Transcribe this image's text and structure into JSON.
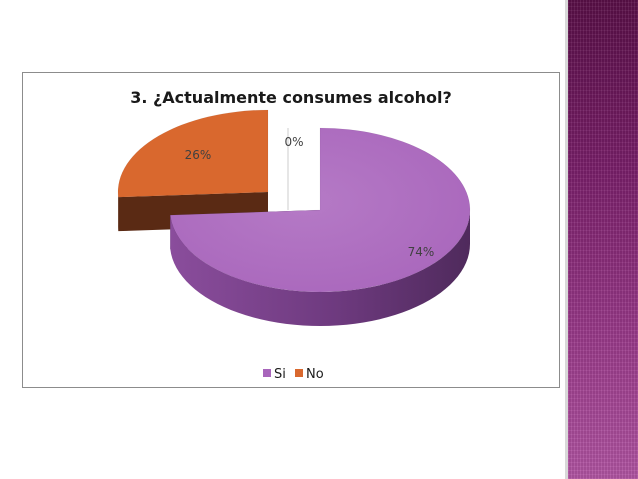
{
  "colors": {
    "si": "#a865bb",
    "si_dark": "#4f2a5c",
    "no": "#d9682e",
    "no_dark": "#5a2a14",
    "side_band": "#8a2b7a"
  },
  "chart_data": {
    "type": "pie",
    "style": "3d-exploded",
    "title": "3. ¿Actualmente consumes alcohol?",
    "slices": [
      {
        "name": "Si",
        "value": 74,
        "label": "74%"
      },
      {
        "name": "No",
        "value": 26,
        "label": "26%"
      },
      {
        "name": "",
        "value": 0,
        "label": "0%"
      }
    ],
    "legend": {
      "position": "bottom",
      "entries": [
        "Si",
        "No"
      ]
    }
  }
}
